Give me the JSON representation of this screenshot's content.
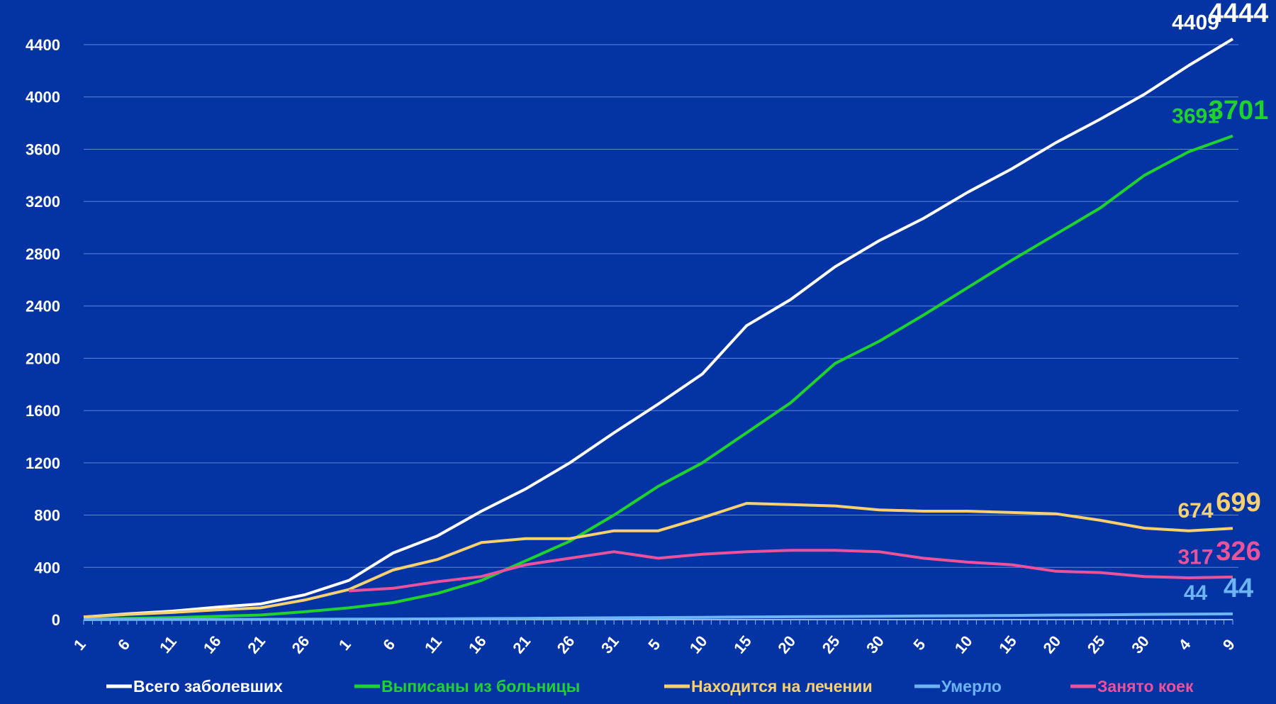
{
  "chart_data": {
    "type": "line",
    "title": "",
    "xlabel": "",
    "ylabel": "",
    "ylim": [
      0,
      4400
    ],
    "yticks": [
      0,
      400,
      800,
      1200,
      1600,
      2000,
      2400,
      2800,
      3200,
      3600,
      4000,
      4400
    ],
    "grid": true,
    "legend_position": "bottom",
    "days_total": 131,
    "x": [
      0,
      5,
      10,
      15,
      20,
      25,
      30,
      35,
      40,
      45,
      50,
      55,
      60,
      65,
      70,
      75,
      80,
      85,
      90,
      95,
      100,
      105,
      110,
      115,
      120,
      125,
      130
    ],
    "xtick_labels": [
      "1",
      "6",
      "11",
      "16",
      "21",
      "26",
      "1",
      "6",
      "11",
      "16",
      "21",
      "26",
      "31",
      "5",
      "10",
      "15",
      "20",
      "25",
      "30",
      "5",
      "10",
      "15",
      "20",
      "25",
      "30",
      "4",
      "9"
    ],
    "series": [
      {
        "name": "Всего заболевших",
        "color": "#ffffff",
        "values": [
          20,
          45,
          65,
          95,
          120,
          190,
          300,
          510,
          640,
          830,
          1000,
          1200,
          1430,
          1650,
          1880,
          2250,
          2450,
          2700,
          2900,
          3070,
          3270,
          3450,
          3650,
          3830,
          4020,
          4240,
          4444
        ],
        "labels": [
          {
            "day": 129,
            "value": 4409,
            "text": "4409"
          },
          {
            "day": 130,
            "value": 4444,
            "text": "4444"
          }
        ]
      },
      {
        "name": "Выписаны из больницы",
        "color": "#1ed42c",
        "values": [
          5,
          10,
          15,
          25,
          35,
          60,
          90,
          130,
          200,
          300,
          450,
          600,
          800,
          1020,
          1200,
          1430,
          1660,
          1960,
          2130,
          2330,
          2540,
          2750,
          2950,
          3150,
          3400,
          3580,
          3701
        ],
        "labels": [
          {
            "day": 129,
            "value": 3691,
            "text": "3691"
          },
          {
            "day": 130,
            "value": 3701,
            "text": "3701"
          }
        ]
      },
      {
        "name": "Находится на лечении",
        "color": "#f7d170",
        "values": [
          20,
          40,
          55,
          75,
          90,
          150,
          230,
          380,
          460,
          590,
          620,
          620,
          680,
          680,
          780,
          890,
          880,
          870,
          840,
          830,
          830,
          820,
          810,
          760,
          700,
          680,
          699
        ],
        "labels": [
          {
            "day": 129,
            "value": 674,
            "text": "674"
          },
          {
            "day": 130,
            "value": 699,
            "text": "699"
          }
        ]
      },
      {
        "name": "Умерло",
        "color": "#6cb4f2",
        "values": [
          0,
          1,
          1,
          2,
          2,
          3,
          4,
          5,
          6,
          8,
          10,
          12,
          14,
          16,
          18,
          20,
          22,
          24,
          26,
          28,
          30,
          32,
          35,
          37,
          40,
          42,
          44
        ],
        "labels": [
          {
            "day": 129,
            "value": 44,
            "text": "44"
          },
          {
            "day": 130,
            "value": 44,
            "text": "44"
          }
        ]
      },
      {
        "name": "Занято коек",
        "color": "#ea529c",
        "values": [
          null,
          null,
          null,
          null,
          null,
          null,
          220,
          240,
          290,
          330,
          420,
          470,
          520,
          470,
          500,
          520,
          530,
          530,
          520,
          470,
          440,
          420,
          370,
          360,
          330,
          320,
          326
        ],
        "labels": [
          {
            "day": 129,
            "value": 317,
            "text": "317"
          },
          {
            "day": 130,
            "value": 326,
            "text": "326"
          }
        ]
      }
    ]
  }
}
